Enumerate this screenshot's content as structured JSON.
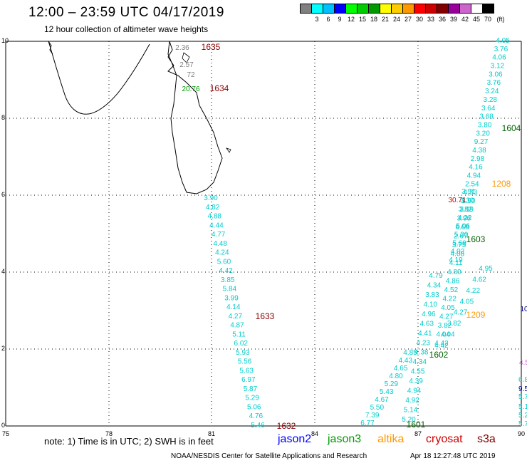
{
  "header": {
    "title": "12:00 – 23:59 UTC 04/17/2019",
    "subtitle": "12 hour collection of altimeter wave heights"
  },
  "colorbar": {
    "unit": "(ft)",
    "colors": [
      "#808080",
      "#00ffff",
      "#00bfff",
      "#0000ff",
      "#00ff00",
      "#00cc00",
      "#009900",
      "#ffff00",
      "#ffcc00",
      "#ff9900",
      "#ff0000",
      "#cc0000",
      "#800000",
      "#990099",
      "#cc66cc",
      "#ffffff",
      "#000000"
    ],
    "labels": [
      "3",
      "6",
      "9",
      "12",
      "15",
      "18",
      "21",
      "24",
      "27",
      "30",
      "33",
      "36",
      "39",
      "42",
      "45",
      "70"
    ]
  },
  "axes": {
    "x_ticks": [
      "75",
      "78",
      "81",
      "84",
      "87",
      "90"
    ],
    "y_ticks": [
      "0",
      "2",
      "4",
      "6",
      "8",
      "10"
    ]
  },
  "passes": [
    {
      "id": "1635",
      "color": "#8b0000"
    },
    {
      "id": "1634",
      "color": "#8b0000"
    },
    {
      "id": "1633",
      "color": "#8b0000"
    },
    {
      "id": "1632",
      "color": "#8b0000"
    },
    {
      "id": "1604",
      "color": "#006400"
    },
    {
      "id": "1603",
      "color": "#006400"
    },
    {
      "id": "1602",
      "color": "#006400"
    },
    {
      "id": "1601",
      "color": "#006400"
    },
    {
      "id": "1208",
      "color": "#ff9900"
    },
    {
      "id": "1209",
      "color": "#ff9900"
    }
  ],
  "track_1633_values": [
    "3.90",
    "4.82",
    "4.88",
    "4.44",
    "4.77",
    "4.48",
    "4.24",
    "5.60",
    "4.42",
    "3.85",
    "5.84",
    "3.99",
    "4.14",
    "4.27",
    "4.87",
    "5.11",
    "6.02",
    "5.93",
    "5.56",
    "5.63",
    "6.97",
    "5.87",
    "5.29",
    "5.06",
    "4.76",
    "5.46"
  ],
  "track_1601_values": [
    "4.85",
    "4.43",
    "4.65",
    "4.80",
    "5.29",
    "5.43",
    "4.67",
    "5.50",
    "7.39",
    "6.77"
  ],
  "track_1602_values": [
    "4.79",
    "4.34",
    "3.83",
    "4.10",
    "4.96",
    "4.63",
    "4.41",
    "4.23",
    "4.38",
    "4.34",
    "4.55",
    "4.39",
    "4.94",
    "4.92",
    "5.14",
    "5.20"
  ],
  "track_1603_values": [
    "3.91",
    "3.30",
    "3.82",
    "3.96",
    "6.68",
    "2.67",
    "3.75",
    "4.08",
    "4.11",
    "4.80",
    "4.86",
    "4.52",
    "4.22",
    "4.05",
    "4.27",
    "3.82",
    "4.04",
    "4.42"
  ],
  "track_1604_values": [
    "4.05",
    "3.76",
    "4.06",
    "3.12",
    "3.06",
    "3.76",
    "3.24",
    "3.28",
    "3.64",
    "3.68",
    "3.80",
    "3.20",
    "9.27",
    "4.38",
    "2.98",
    "4.16",
    "4.94",
    "2.54",
    "4.33",
    "3.90",
    "3.99",
    "4.22",
    "5.06",
    "5.30",
    "5.69",
    "4.02",
    "4.19"
  ],
  "track_1209_values": [
    "4.95",
    "4.62",
    "4.22",
    "4.05",
    "4.27",
    "3.82",
    "4.04",
    "4.42"
  ],
  "sri_lanka_coast_values": [
    "2.36",
    "2.57",
    "72",
    "20.76"
  ],
  "outlier_values": [
    "30.71"
  ],
  "edge_values": [
    "6.8",
    "5.7",
    "5.1",
    "5.2",
    "5.7",
    "9.5",
    "10",
    "4.5"
  ],
  "note": "note: 1) Time is in UTC; 2) SWH is in feet",
  "legend": [
    {
      "name": "jason2",
      "color": "#0000ff"
    },
    {
      "name": "jason3",
      "color": "#009900"
    },
    {
      "name": "altika",
      "color": "#ff9900"
    },
    {
      "name": "cryosat",
      "color": "#cc0000"
    },
    {
      "name": "s3a",
      "color": "#800000"
    }
  ],
  "footer": {
    "credit": "NOAA/NESDIS Center for Satellite Applications and Research",
    "timestamp": "Apr 18 12:27:48 UTC 2019"
  }
}
